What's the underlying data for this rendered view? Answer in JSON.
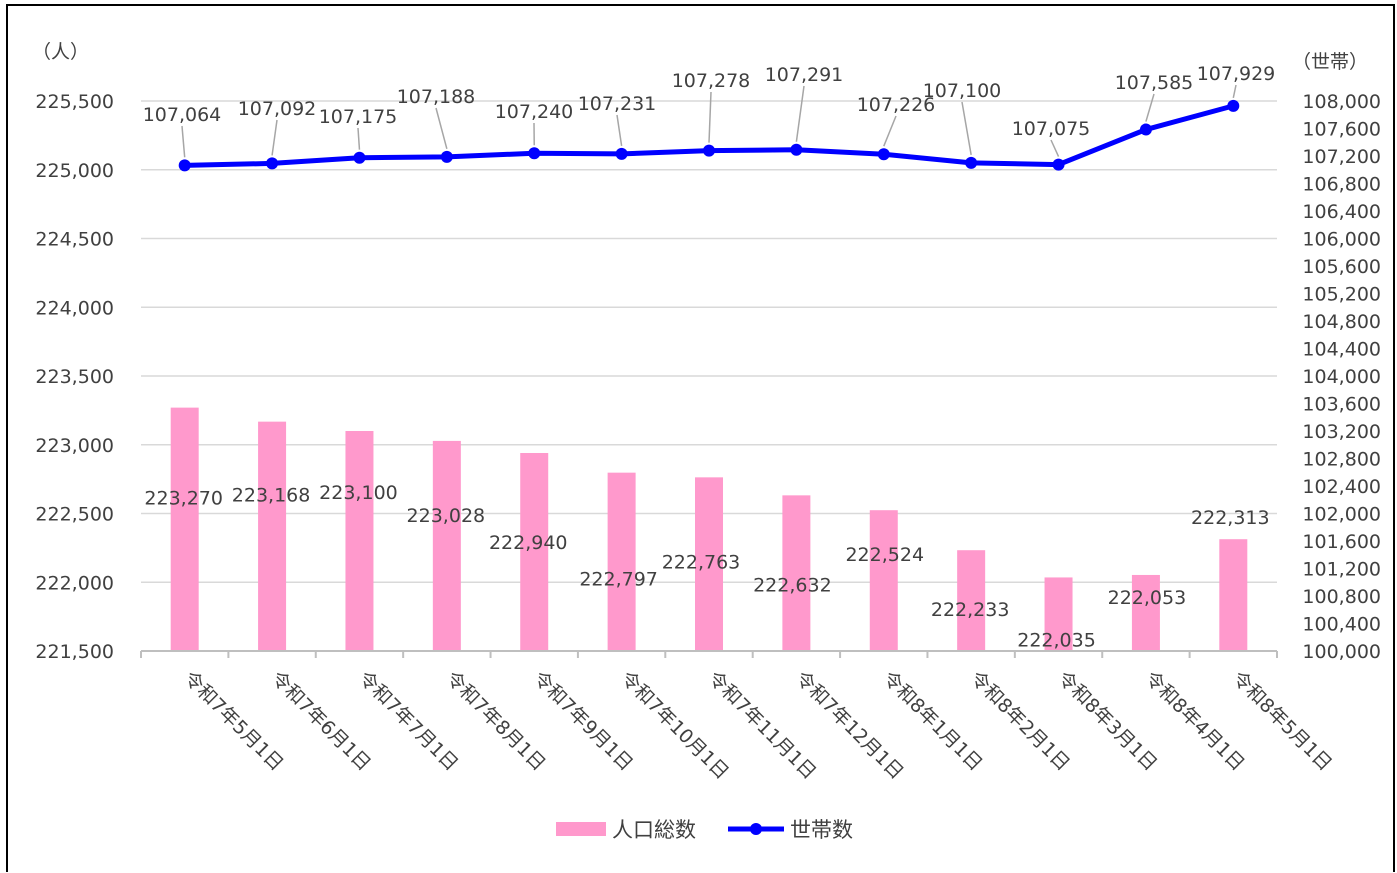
{
  "chart_data": {
    "type": "bar+line",
    "categories": [
      "令和7年5月1日",
      "令和7年6月1日",
      "令和7年7月1日",
      "令和7年8月1日",
      "令和7年9月1日",
      "令和7年10月1日",
      "令和7年11月1日",
      "令和7年12月1日",
      "令和8年1月1日",
      "令和8年2月1日",
      "令和8年3月1日",
      "令和8年4月1日",
      "令和8年5月1日"
    ],
    "series": [
      {
        "name": "人口総数",
        "kind": "bar",
        "axis": "left",
        "color": "#ff99cc",
        "values": [
          223270,
          223168,
          223100,
          223028,
          222940,
          222797,
          222763,
          222632,
          222524,
          222233,
          222035,
          222053,
          222313
        ],
        "labels": [
          "223,270",
          "223,168",
          "223,100",
          "223,028",
          "222,940",
          "222,797",
          "222,763",
          "222,632",
          "222,524",
          "222,233",
          "222,035",
          "222,053",
          "222,313"
        ]
      },
      {
        "name": "世帯数",
        "kind": "line",
        "axis": "right",
        "color": "#0000ff",
        "values": [
          107064,
          107092,
          107175,
          107188,
          107240,
          107231,
          107278,
          107291,
          107226,
          107100,
          107075,
          107585,
          107929
        ],
        "labels": [
          "107,064",
          "107,092",
          "107,175",
          "107,188",
          "107,240",
          "107,231",
          "107,278",
          "107,291",
          "107,226",
          "107,100",
          "107,075",
          "107,585",
          "107,929"
        ]
      }
    ],
    "y_left": {
      "unit": "（人）",
      "range": [
        221500,
        225500
      ],
      "ticks": [
        "225,500",
        "225,000",
        "224,500",
        "224,000",
        "223,500",
        "223,000",
        "222,500",
        "222,000",
        "221,500"
      ]
    },
    "y_right": {
      "unit": "（世帯）",
      "range": [
        100000,
        108000
      ],
      "ticks": [
        "108,000",
        "107,600",
        "107,200",
        "106,800",
        "106,400",
        "106,000",
        "105,600",
        "105,200",
        "104,800",
        "104,400",
        "104,000",
        "103,600",
        "103,200",
        "102,800",
        "102,400",
        "102,000",
        "101,600",
        "101,200",
        "100,800",
        "100,400",
        "100,000"
      ]
    },
    "grid": true,
    "legend": "bottom-center"
  }
}
